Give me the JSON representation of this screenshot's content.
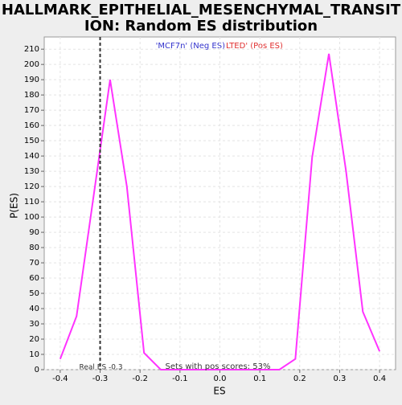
{
  "chart_data": {
    "type": "line",
    "title": "HALLMARK_EPITHELIAL_MESENCHYMAL_TRANSITION: Random ES distribution",
    "title_lines": [
      "HALLMARK_EPITHELIAL_MESENCHYMAL_TRANSIT",
      "ION: Random ES distribution"
    ],
    "legend_neg": "'MCF7n' (Neg ES)",
    "legend_pos": "LTED' (Pos ES)",
    "legend_neg_color": "#3333cc",
    "legend_pos_color": "#e03030",
    "x_label": "ES",
    "y_label": "P(ES)",
    "x": [
      -0.4,
      -0.359,
      -0.275,
      -0.233,
      -0.19,
      -0.148,
      -0.106,
      -0.064,
      -0.022,
      0.02,
      0.062,
      0.104,
      0.149,
      0.189,
      0.231,
      0.273,
      0.316,
      0.358,
      0.4
    ],
    "series": [
      {
        "name": "P(ES)",
        "color": "#ff33ff",
        "values": [
          7,
          35,
          190,
          120,
          11,
          0,
          0,
          0,
          0,
          0,
          0,
          0,
          0,
          7,
          139,
          207,
          130,
          38,
          12
        ]
      }
    ],
    "xlim": [
      -0.44,
      0.44
    ],
    "ylim": [
      0,
      218
    ],
    "xticks": [
      -0.4,
      -0.3,
      -0.2,
      -0.1,
      {
        "value": 0,
        "label": "0.0"
      },
      0.1,
      0.2,
      0.3,
      0.4
    ],
    "yticks": [
      0,
      10,
      20,
      30,
      40,
      50,
      60,
      70,
      80,
      90,
      100,
      110,
      120,
      130,
      140,
      150,
      160,
      170,
      180,
      190,
      200,
      210
    ],
    "grid": true,
    "real_es": -0.3,
    "real_es_label": "Real ES -0.3",
    "pos_scores_label": "Sets with pos scores: 53%"
  }
}
